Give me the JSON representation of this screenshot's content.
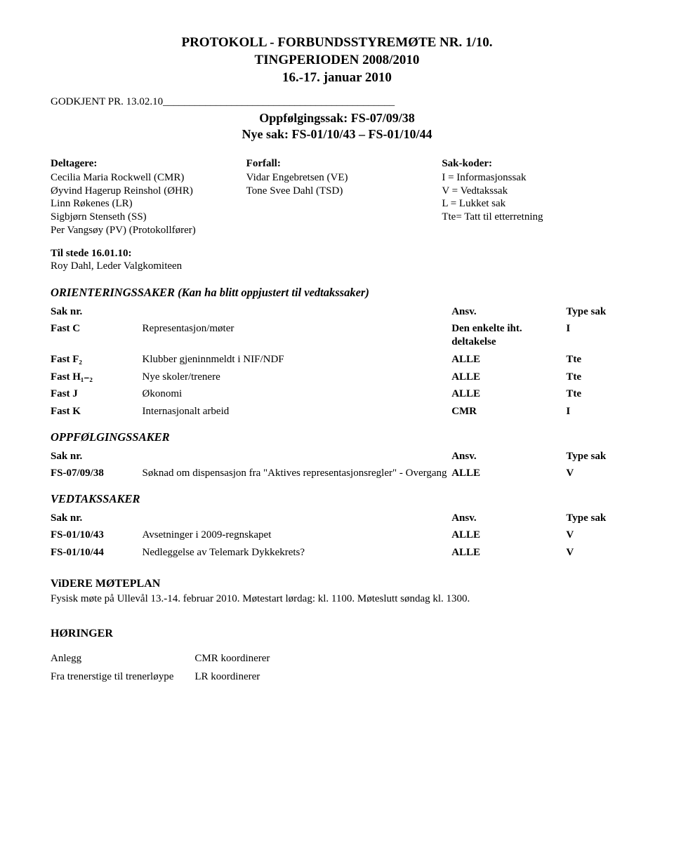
{
  "title": {
    "line1": "PROTOKOLL - FORBUNDSSTYREMØTE NR. 1/10.",
    "line2": "TINGPERIODEN 2008/2010",
    "line3": "16.-17. januar 2010"
  },
  "approved_line": "GODKJENT PR. 13.02.10____________________________________________",
  "sub_title": {
    "line1": "Oppfølgingssak: FS-07/09/38",
    "line2": "Nye sak: FS-01/10/43 – FS-01/10/44"
  },
  "participants": {
    "col1_head": "Deltagere:",
    "col1": [
      "Cecilia Maria Rockwell (CMR)",
      "Øyvind Hagerup Reinshol (ØHR)",
      "Linn Røkenes (LR)",
      "Sigbjørn Stenseth (SS)",
      "Per Vangsøy (PV) (Protokollfører)"
    ],
    "col2_head": "Forfall:",
    "col2": [
      "Vidar Engebretsen (VE)",
      "Tone Svee Dahl (TSD)"
    ],
    "col3_head": "Sak-koder:",
    "col3": [
      "I   = Informasjonssak",
      "V  = Vedtakssak",
      "L  = Lukket sak",
      "Tte= Tatt til etterretning"
    ]
  },
  "til_stede": {
    "head": "Til stede 16.01.10:",
    "line": "Roy Dahl, Leder Valgkomiteen"
  },
  "orient_head": "ORIENTERINGSSAKER ",
  "orient_paren": "(Kan ha blitt oppjustert til vedtakssaker)",
  "table_headers": {
    "nr": "Sak nr.",
    "ansv": "Ansv.",
    "type": "Type sak"
  },
  "orient_rows": [
    {
      "nr": "Fast C",
      "desc": "Representasjon/møter",
      "ansv": "Den enkelte iht. deltakelse",
      "type": "I"
    },
    {
      "nr": "Fast F₂",
      "desc": "Klubber gjeninnmeldt i NIF/NDF",
      "ansv": "ALLE",
      "type": "Tte"
    },
    {
      "nr": "Fast H₁₋₂",
      "desc": "Nye skoler/trenere",
      "ansv": "ALLE",
      "type": "Tte",
      "spaced": true
    },
    {
      "nr": "Fast J",
      "desc": "Økonomi",
      "ansv": "ALLE",
      "type": "Tte",
      "spaced": true
    },
    {
      "nr": "Fast K",
      "desc": "Internasjonalt arbeid",
      "ansv": "CMR",
      "type": "I",
      "spaced": true
    }
  ],
  "oppf_head": "OPPFØLGINGSSAKER",
  "oppf_rows": [
    {
      "nr": "FS-07/09/38",
      "desc": "Søknad om dispensasjon fra \"Aktives representasjonsregler\" - Overgang",
      "ansv": "ALLE",
      "type": "V"
    }
  ],
  "vedtak_head": "VEDTAKSSAKER",
  "vedtak_rows": [
    {
      "nr": "FS-01/10/43",
      "desc": "Avsetninger i 2009-regnskapet",
      "ansv": "ALLE",
      "type": "V"
    },
    {
      "nr": "FS-01/10/44",
      "desc": "Nedleggelse av Telemark Dykkekrets?",
      "ansv": "ALLE",
      "type": "V",
      "spaced": true
    }
  ],
  "videre": {
    "head": "ViDERE MØTEPLAN",
    "line": "Fysisk møte på Ullevål 13.-14. februar 2010. Møtestart lørdag: kl. 1100. Møteslutt søndag kl. 1300."
  },
  "horinger": {
    "head": "HØRINGER",
    "rows": [
      {
        "a": "Anlegg",
        "b": "CMR koordinerer"
      },
      {
        "a": "Fra trenerstige til  trenerløype",
        "b": "LR koordinerer"
      }
    ]
  }
}
